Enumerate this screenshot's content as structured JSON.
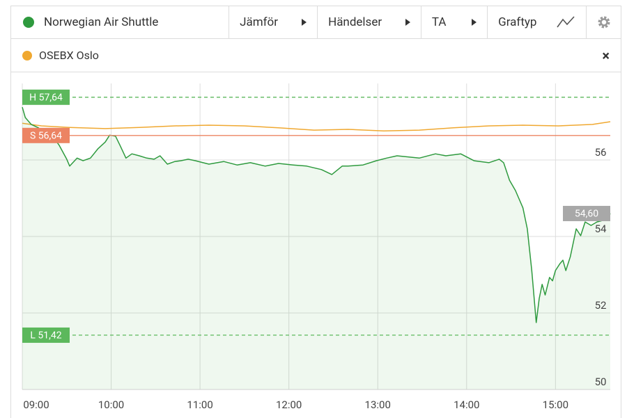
{
  "toolbar": {
    "items": [
      "Jämför",
      "Händelser",
      "TA",
      "Graftyp"
    ]
  },
  "chart_data": {
    "type": "line",
    "xlim": [
      540,
      937
    ],
    "xticks": [
      {
        "value": 540,
        "label": "09:00"
      },
      {
        "value": 600,
        "label": "10:00"
      },
      {
        "value": 660,
        "label": "11:00"
      },
      {
        "value": 720,
        "label": "12:00"
      },
      {
        "value": 780,
        "label": "13:00"
      },
      {
        "value": 840,
        "label": "14:00"
      },
      {
        "value": 900,
        "label": "15:00"
      }
    ],
    "ylim": [
      50,
      58
    ],
    "yticks": [
      50,
      52,
      54,
      56
    ],
    "grid": true,
    "series": [
      {
        "name": "Norwegian Air Shuttle",
        "color": "#2e9a3e",
        "area": true,
        "x": [
          540,
          542,
          546,
          551,
          556,
          560,
          565,
          570,
          572,
          577,
          581,
          586,
          591,
          596,
          599,
          603,
          606,
          610,
          614,
          619,
          624,
          629,
          633,
          638,
          643,
          647,
          652,
          657,
          662,
          666,
          676,
          685,
          694,
          704,
          713,
          723,
          732,
          742,
          749,
          756,
          760,
          770,
          779,
          786,
          793,
          808,
          819,
          826,
          836,
          845,
          855,
          862,
          865,
          869,
          873,
          878,
          881,
          884,
          886,
          887,
          889,
          891,
          893,
          896,
          898,
          900,
          903,
          905,
          907,
          910,
          912,
          914,
          917,
          920,
          924,
          928,
          932,
          935,
          937
        ],
        "values": [
          57.38,
          57.11,
          56.93,
          56.84,
          56.56,
          56.65,
          56.38,
          56.02,
          55.84,
          56.05,
          55.98,
          56.05,
          56.29,
          56.47,
          56.65,
          56.62,
          56.38,
          56.05,
          56.16,
          56.11,
          56.05,
          56.02,
          56.11,
          55.89,
          55.96,
          55.98,
          56.02,
          55.98,
          55.93,
          55.89,
          55.96,
          55.87,
          55.93,
          55.84,
          55.91,
          55.87,
          55.84,
          55.75,
          55.62,
          55.84,
          55.84,
          55.87,
          55.98,
          56.05,
          56.11,
          56.05,
          56.16,
          56.11,
          56.16,
          55.98,
          55.93,
          56.02,
          55.93,
          55.47,
          55.2,
          54.75,
          54.2,
          53.11,
          52.2,
          51.75,
          52.38,
          52.75,
          52.47,
          52.93,
          52.84,
          53.11,
          53.29,
          53.38,
          53.11,
          53.47,
          53.84,
          54.2,
          54.02,
          54.38,
          54.29,
          54.38,
          54.42,
          54.47,
          54.6
        ]
      },
      {
        "name": "OSEBX Oslo",
        "color": "#f0a830",
        "area": false,
        "x": [
          540,
          553,
          572,
          596,
          619,
          643,
          666,
          690,
          713,
          737,
          760,
          784,
          808,
          831,
          855,
          878,
          902,
          925,
          937
        ],
        "values": [
          56.96,
          56.89,
          56.85,
          56.82,
          56.85,
          56.89,
          56.91,
          56.89,
          56.84,
          56.78,
          56.8,
          56.76,
          56.78,
          56.84,
          56.89,
          56.91,
          56.89,
          56.93,
          57.0
        ]
      }
    ],
    "markers": [
      {
        "value": 57.64,
        "label": "H 57,64",
        "color": "#5cb85c",
        "style": "dashed",
        "side": "left"
      },
      {
        "value": 56.64,
        "label": "S 56,64",
        "color": "#ec8463",
        "style": "solid",
        "side": "left"
      },
      {
        "value": 51.42,
        "label": "L 51,42",
        "color": "#5cb85c",
        "style": "dashed",
        "side": "left"
      },
      {
        "value": 54.6,
        "label": "54,60",
        "color": "#a8a8a8",
        "style": "none",
        "side": "right"
      }
    ]
  }
}
